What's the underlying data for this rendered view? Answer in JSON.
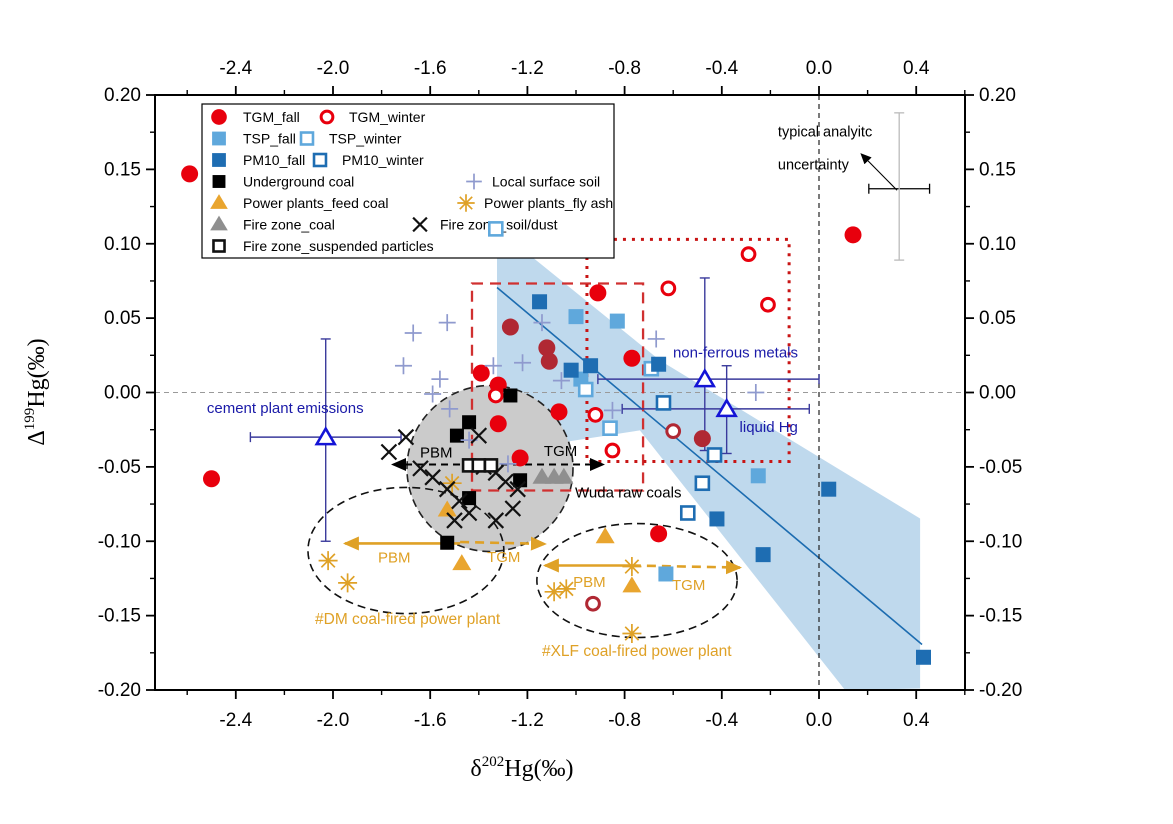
{
  "chart_data": {
    "type": "scatter",
    "xlabel_parts": [
      {
        "t": "δ"
      },
      {
        "t": "202",
        "sup": true
      },
      {
        "t": "Hg(‰)"
      }
    ],
    "ylabel_parts": [
      {
        "t": "Δ"
      },
      {
        "t": "199",
        "sup": true
      },
      {
        "t": "Hg(‰)"
      }
    ],
    "xlim": [
      -2.7325,
      0.6008
    ],
    "ylim": [
      -0.2,
      0.2
    ],
    "x_major_ticks": [
      -2.4,
      -2.0,
      -1.6,
      -1.2,
      -0.8,
      -0.4,
      0.0,
      0.4
    ],
    "x_tick_labels": [
      "-2.4",
      "-2.0",
      "-1.6",
      "-1.2",
      "-0.8",
      "-0.4",
      "0.0",
      "0.4"
    ],
    "y_major_ticks": [
      0.2,
      0.15,
      0.1,
      0.05,
      0.0,
      -0.05,
      -0.1,
      -0.15,
      -0.2
    ],
    "y_tick_labels": [
      "0.20",
      "0.15",
      "0.10",
      "0.05",
      "0.00",
      "-0.05",
      "-0.10",
      "-0.15",
      "-0.20"
    ],
    "grid": false,
    "legend_position": "upper-left-inside",
    "reference_lines": [
      {
        "axis": "y",
        "value": 0.0,
        "color": "#9a9a9a",
        "dash": "5 4",
        "width": 1
      },
      {
        "axis": "x",
        "value": 0.0,
        "color": "#222222",
        "dash": "5 4",
        "width": 1.2
      }
    ],
    "regression": {
      "line": [
        [
          -1.325,
          0.0706
        ],
        [
          0.424,
          -0.1694
        ]
      ],
      "line_color": "#1C6CB0",
      "band_color": "#AFCFE9",
      "band": [
        [
          -1.325,
          0.0955
        ],
        [
          -1.214,
          0.0955
        ],
        [
          -0.654,
          0.0215
        ],
        [
          0.416,
          -0.0847
        ],
        [
          0.416,
          -0.199
        ],
        [
          0.107,
          -0.2
        ],
        [
          -0.737,
          -0.0255
        ],
        [
          -1.325,
          -0.0403
        ]
      ]
    },
    "series": [
      {
        "id": "tgm_fall",
        "label": "TGM_fall",
        "marker": "circle",
        "open": false,
        "color": "#E8000D",
        "dark": "#B02833",
        "size": 8.5,
        "points": [
          [
            -2.59,
            0.147
          ],
          [
            -2.5,
            -0.058
          ],
          [
            0.14,
            0.106
          ],
          [
            -0.91,
            0.067
          ],
          [
            -1.27,
            0.044,
            "d"
          ],
          [
            -1.12,
            0.03,
            "d"
          ],
          [
            -1.11,
            0.021,
            "d"
          ],
          [
            -0.77,
            0.023
          ],
          [
            -1.39,
            0.013
          ],
          [
            -1.32,
            0.005
          ],
          [
            -1.32,
            -0.021
          ],
          [
            -1.07,
            -0.013
          ],
          [
            -1.23,
            -0.044
          ],
          [
            -0.48,
            -0.031,
            "d"
          ],
          [
            -0.66,
            -0.095
          ]
        ]
      },
      {
        "id": "tgm_winter",
        "label": "TGM_winter",
        "marker": "circle",
        "open": true,
        "color": "#E8000D",
        "dark": "#B02833",
        "size": 7.5,
        "points": [
          [
            -0.62,
            0.07
          ],
          [
            -0.29,
            0.093
          ],
          [
            -0.21,
            0.059
          ],
          [
            -1.33,
            -0.002
          ],
          [
            -0.92,
            -0.015
          ],
          [
            -0.85,
            -0.039
          ],
          [
            -0.6,
            -0.026,
            "d"
          ],
          [
            -0.93,
            -0.142,
            "d"
          ]
        ]
      },
      {
        "id": "tsp_fall",
        "label": "TSP_fall",
        "marker": "square",
        "open": false,
        "color": "#5FA8DC",
        "size": 15,
        "points": [
          [
            -1.0,
            0.051
          ],
          [
            -0.83,
            0.048
          ],
          [
            -0.98,
            0.009
          ],
          [
            -0.63,
            -0.122
          ],
          [
            -0.25,
            -0.056
          ]
        ]
      },
      {
        "id": "tsp_winter",
        "label": "TSP_winter",
        "marker": "square",
        "open": true,
        "color": "#5FA8DC",
        "size": 13,
        "points": [
          [
            -1.33,
            0.11
          ],
          [
            -0.69,
            0.016
          ],
          [
            -0.96,
            0.002
          ],
          [
            -0.86,
            -0.024
          ]
        ]
      },
      {
        "id": "pm10_fall",
        "label": "PM10_fall",
        "marker": "square",
        "open": false,
        "color": "#1E6DB2",
        "size": 15,
        "points": [
          [
            -1.15,
            0.061
          ],
          [
            -0.94,
            0.018
          ],
          [
            -1.02,
            0.015
          ],
          [
            -0.66,
            0.019
          ],
          [
            -0.42,
            -0.085
          ],
          [
            -0.23,
            -0.109
          ],
          [
            0.04,
            -0.065
          ],
          [
            0.43,
            -0.178
          ]
        ]
      },
      {
        "id": "pm10_winter",
        "label": "PM10_winter",
        "marker": "square",
        "open": true,
        "color": "#1E6DB2",
        "size": 13,
        "points": [
          [
            -0.64,
            -0.007
          ],
          [
            -0.43,
            -0.042
          ],
          [
            -0.48,
            -0.061
          ],
          [
            -0.54,
            -0.081
          ]
        ]
      },
      {
        "id": "underground_coal",
        "label": "Underground coal",
        "marker": "square",
        "open": false,
        "color": "#000000",
        "size": 14,
        "points": [
          [
            -1.27,
            -0.002
          ],
          [
            -1.44,
            -0.02
          ],
          [
            -1.49,
            -0.029
          ],
          [
            -1.44,
            -0.071
          ],
          [
            -1.23,
            -0.059
          ],
          [
            -1.53,
            -0.101
          ]
        ]
      },
      {
        "id": "local_surface_soil",
        "label": "Local surface soil",
        "marker": "plus",
        "color": "#8F9ACE",
        "size": 17,
        "points": [
          [
            -1.67,
            0.04
          ],
          [
            -1.71,
            0.018
          ],
          [
            -1.53,
            0.047
          ],
          [
            -1.56,
            0.009
          ],
          [
            -1.52,
            -0.011
          ],
          [
            -1.59,
            -0.001
          ],
          [
            -1.44,
            -0.032
          ],
          [
            -1.34,
            0.018
          ],
          [
            -1.22,
            0.02
          ],
          [
            -1.14,
            0.047
          ],
          [
            -1.06,
            0.008
          ],
          [
            -0.85,
            -0.012
          ],
          [
            -0.67,
            0.036
          ],
          [
            -0.26,
            0.0
          ],
          [
            -1.28,
            -0.048
          ]
        ]
      },
      {
        "id": "pp_feed_coal",
        "label": "Power plants_feed coal",
        "marker": "triangle",
        "color": "#E9A52F",
        "size": 17,
        "points": [
          [
            -1.53,
            -0.079
          ],
          [
            -1.47,
            -0.115
          ],
          [
            -0.88,
            -0.097
          ],
          [
            -0.77,
            -0.13
          ]
        ]
      },
      {
        "id": "pp_fly_ash",
        "label": "Power plants_fly ash",
        "marker": "asterisk",
        "color": "#DFA126",
        "size": 19,
        "points": [
          [
            -2.02,
            -0.113
          ],
          [
            -1.94,
            -0.128
          ],
          [
            -1.51,
            -0.061
          ],
          [
            -1.09,
            -0.134
          ],
          [
            -1.04,
            -0.132
          ],
          [
            -0.77,
            -0.117
          ],
          [
            -0.77,
            -0.162
          ]
        ]
      },
      {
        "id": "fire_zone_coal",
        "label": "Fire zone_coal",
        "marker": "triangle",
        "color": "#8F8F8F",
        "size": 17,
        "points": [
          [
            -1.14,
            -0.057
          ],
          [
            -1.09,
            -0.057
          ],
          [
            -1.05,
            -0.057
          ]
        ]
      },
      {
        "id": "fire_zone_soil_dust",
        "label": "Fire zone_soil/dust",
        "marker": "x",
        "color": "#111111",
        "size": 15,
        "points": [
          [
            -1.7,
            -0.03
          ],
          [
            -1.77,
            -0.04
          ],
          [
            -1.64,
            -0.051
          ],
          [
            -1.59,
            -0.057
          ],
          [
            -1.53,
            -0.065
          ],
          [
            -1.48,
            -0.073
          ],
          [
            -1.4,
            -0.029
          ],
          [
            -1.38,
            -0.05
          ],
          [
            -1.33,
            -0.054
          ],
          [
            -1.29,
            -0.06
          ],
          [
            -1.24,
            -0.065
          ],
          [
            -1.44,
            -0.081
          ],
          [
            -1.5,
            -0.086
          ],
          [
            -1.33,
            -0.086
          ],
          [
            -1.26,
            -0.078
          ]
        ]
      },
      {
        "id": "fire_zone_susp",
        "label": "Fire zone_suspended particles",
        "marker": "square",
        "open": true,
        "color": "#111111",
        "size": 12,
        "points": [
          [
            -1.44,
            -0.049
          ],
          [
            -1.4,
            -0.049
          ],
          [
            -1.35,
            -0.049
          ]
        ]
      }
    ],
    "legend_rows": [
      [
        "tgm_fall",
        "tgm_winter"
      ],
      [
        "tsp_fall",
        "tsp_winter"
      ],
      [
        "pm10_fall",
        "pm10_winter"
      ],
      [
        "underground_coal",
        "local_surface_soil"
      ],
      [
        "pp_feed_coal",
        "pp_fly_ash"
      ],
      [
        "fire_zone_coal",
        "fire_zone_soil_dust"
      ],
      [
        "fire_zone_susp"
      ]
    ],
    "source_endmembers": [
      {
        "id": "cement",
        "label": "cement plant emissions",
        "x": -2.03,
        "y": -0.03,
        "x_range": [
          -2.34,
          -1.72
        ],
        "y_range": [
          -0.1,
          0.036
        ]
      },
      {
        "id": "nonferrous",
        "label": "non-ferrous metals",
        "x": -0.47,
        "y": 0.009,
        "x_range": [
          -0.91,
          0.0
        ],
        "y_range": [
          -0.039,
          0.077
        ]
      },
      {
        "id": "liquid_hg",
        "label": "liquid Hg",
        "x": -0.38,
        "y": -0.011,
        "x_range": [
          -0.81,
          -0.04
        ],
        "y_range": [
          -0.041,
          0.018
        ]
      }
    ],
    "uncertainty_cross": {
      "x": 0.33,
      "y": 0.137,
      "x_half_width": 0.125,
      "y_range": [
        0.089,
        0.188
      ]
    },
    "shapes": {
      "dashed_rect": {
        "x": [
          -1.428,
          -0.724
        ],
        "y": [
          -0.0659,
          0.0733
        ],
        "color": "#D03030"
      },
      "dotted_rect": {
        "x": [
          -0.955,
          -0.123
        ],
        "y": [
          -0.0464,
          0.1029
        ],
        "color": "#C81414"
      },
      "gray_circle": {
        "cx": -1.354,
        "cy": -0.0511,
        "rx": 0.3416,
        "ry": 0.0558,
        "fill": "#CBCBCB",
        "stroke": "#222222"
      },
      "dm_ellipse": {
        "cx": -1.7,
        "cy": -0.1062,
        "rx": 0.403,
        "ry": 0.0424,
        "stroke": "#111111"
      },
      "xlf_ellipse": {
        "cx": -0.749,
        "cy": -0.1264,
        "rx": 0.412,
        "ry": 0.0383,
        "stroke": "#111111"
      }
    },
    "arrows": [
      {
        "id": "wuda-arrow",
        "x1": -1.753,
        "y1": -0.0484,
        "x2": -0.889,
        "y2": -0.0484,
        "color": "#000000",
        "dash": "7 5",
        "heads": "both",
        "width": 2
      },
      {
        "id": "dm-pbm-arrow",
        "x1": -1.477,
        "y1": -0.1015,
        "x2": -1.951,
        "y2": -0.1015,
        "color": "#DFA126",
        "dash": null,
        "heads": "end",
        "width": 2.6
      },
      {
        "id": "dm-tgm-arrow",
        "x1": -1.477,
        "y1": -0.1005,
        "x2": -1.128,
        "y2": -0.1018,
        "color": "#DFA126",
        "dash": "9 6",
        "heads": "end",
        "width": 2.6
      },
      {
        "id": "xlf-pbm-arrow",
        "x1": -0.77,
        "y1": -0.1163,
        "x2": -1.128,
        "y2": -0.1163,
        "color": "#DFA126",
        "dash": null,
        "heads": "end",
        "width": 2.6
      },
      {
        "id": "xlf-tgm-arrow",
        "x1": -0.77,
        "y1": -0.1163,
        "x2": -0.325,
        "y2": -0.1177,
        "color": "#DFA126",
        "dash": "9 6",
        "heads": "end",
        "width": 2.6
      },
      {
        "id": "uncertainty-pointer",
        "x1": 0.321,
        "y1": 0.136,
        "x2": 0.176,
        "y2": 0.16,
        "color": "#000000",
        "dash": null,
        "heads": "end",
        "width": 1.1,
        "small": true
      }
    ],
    "text_labels": [
      {
        "text": "typical analyitc",
        "x": -0.169,
        "y": 0.1755,
        "color": "#000000",
        "size": 14.5
      },
      {
        "text": "uncertainty",
        "x": -0.169,
        "y": 0.1533,
        "color": "#000000",
        "size": 14.5
      },
      {
        "text": "non-ferrous metals",
        "x": -0.601,
        "y": 0.0269,
        "color": "#1A1AA8",
        "size": 15
      },
      {
        "text": "liquid Hg",
        "x": -0.327,
        "y": -0.0229,
        "color": "#1A1AA8",
        "size": 15
      },
      {
        "text": "cement plant emissions",
        "x": -2.519,
        "y": -0.0101,
        "color": "#1A1AA8",
        "size": 15
      },
      {
        "text": "PBM",
        "x": -1.642,
        "y": -0.0403,
        "color": "#000000",
        "size": 15
      },
      {
        "text": "TGM",
        "x": -1.132,
        "y": -0.039,
        "color": "#000000",
        "size": 15
      },
      {
        "text": "Wuda raw coals",
        "x": -1.004,
        "y": -0.0672,
        "color": "#000000",
        "size": 15
      },
      {
        "text": "PBM",
        "x": -1.815,
        "y": -0.1109,
        "color": "#DFA126",
        "size": 15
      },
      {
        "text": "TGM",
        "x": -1.366,
        "y": -0.1103,
        "color": "#DFA126",
        "size": 15
      },
      {
        "text": "PBM",
        "x": -1.012,
        "y": -0.1271,
        "color": "#DFA126",
        "size": 15
      },
      {
        "text": "TGM",
        "x": -0.605,
        "y": -0.1291,
        "color": "#DFA126",
        "size": 15
      },
      {
        "text": "#DM coal-fired power plant",
        "x": -2.074,
        "y": -0.1519,
        "color": "#DFA126",
        "size": 15.5
      },
      {
        "text": "#XLF coal-fired power plant",
        "x": -1.14,
        "y": -0.1734,
        "color": "#DFA126",
        "size": 15.5
      }
    ],
    "style": {
      "source_marker_stroke": "#1414D6",
      "source_errorbar_color": "#3A3A9C",
      "uncertainty_h_color": "#000000",
      "uncertainty_v_color": "#BBBBBB"
    }
  }
}
